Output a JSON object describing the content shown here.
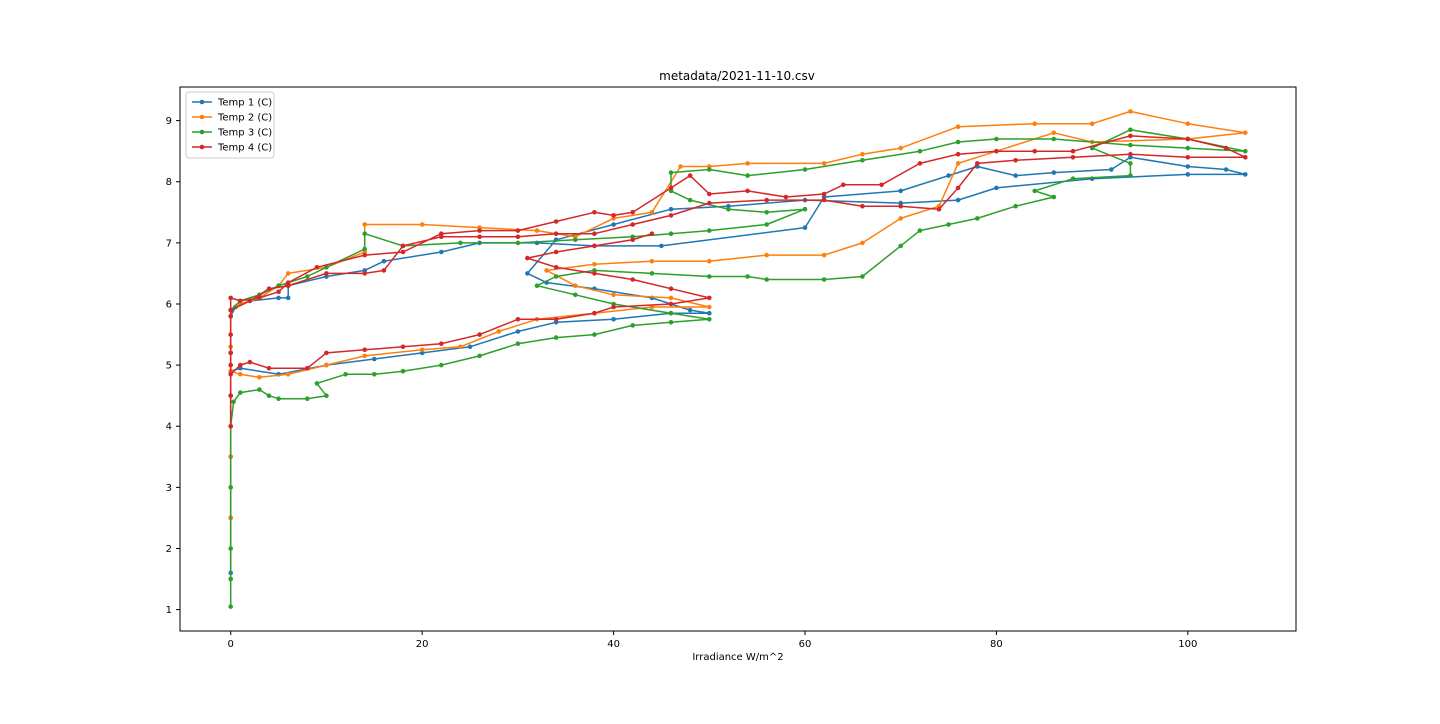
{
  "chart_data": {
    "type": "line",
    "title": "metadata/2021-11-10.csv",
    "xlabel": "Irradiance W/m^2",
    "ylabel": "",
    "xlim": [
      -5.3,
      111.3
    ],
    "ylim": [
      0.65,
      9.55
    ],
    "x_ticks": [
      0,
      20,
      40,
      60,
      80,
      100
    ],
    "y_ticks": [
      1,
      2,
      3,
      4,
      5,
      6,
      7,
      8,
      9
    ],
    "grid": false,
    "legend_position": "top-left",
    "markers": true,
    "series": [
      {
        "name": "Temp 1 (C)",
        "color": "#1f77b4",
        "points": [
          [
            0,
            1.6
          ],
          [
            0,
            2.5
          ],
          [
            0,
            3.5
          ],
          [
            0,
            4.5
          ],
          [
            0,
            5.2
          ],
          [
            0,
            5.8
          ],
          [
            0.5,
            5.95
          ],
          [
            2,
            6.05
          ],
          [
            5,
            6.1
          ],
          [
            6,
            6.1
          ],
          [
            6,
            6.3
          ],
          [
            10,
            6.45
          ],
          [
            14,
            6.55
          ],
          [
            16,
            6.7
          ],
          [
            22,
            6.85
          ],
          [
            26,
            7.0
          ],
          [
            32,
            7.0
          ],
          [
            38,
            6.95
          ],
          [
            45,
            6.95
          ],
          [
            60,
            7.25
          ],
          [
            62,
            7.75
          ],
          [
            70,
            7.85
          ],
          [
            75,
            8.1
          ],
          [
            78,
            8.25
          ],
          [
            82,
            8.1
          ],
          [
            86,
            8.15
          ],
          [
            92,
            8.2
          ],
          [
            94,
            8.4
          ],
          [
            100,
            8.25
          ],
          [
            104,
            8.2
          ],
          [
            106,
            8.12
          ],
          [
            100,
            8.12
          ],
          [
            90,
            8.05
          ],
          [
            80,
            7.9
          ],
          [
            76,
            7.7
          ],
          [
            70,
            7.65
          ],
          [
            60,
            7.7
          ],
          [
            52,
            7.6
          ],
          [
            46,
            7.55
          ],
          [
            40,
            7.3
          ],
          [
            34,
            7.05
          ],
          [
            31,
            6.5
          ],
          [
            33,
            6.35
          ],
          [
            38,
            6.25
          ],
          [
            44,
            6.1
          ],
          [
            48,
            5.9
          ],
          [
            50,
            5.85
          ],
          [
            46,
            5.85
          ],
          [
            40,
            5.75
          ],
          [
            34,
            5.7
          ],
          [
            30,
            5.55
          ],
          [
            25,
            5.3
          ],
          [
            20,
            5.2
          ],
          [
            15,
            5.1
          ],
          [
            10,
            5.0
          ],
          [
            5,
            4.85
          ],
          [
            1,
            4.95
          ],
          [
            0,
            4.9
          ]
        ]
      },
      {
        "name": "Temp 2 (C)",
        "color": "#ff7f0e",
        "points": [
          [
            0,
            1.5
          ],
          [
            0,
            2.5
          ],
          [
            0,
            3.5
          ],
          [
            0,
            4.5
          ],
          [
            0,
            5.3
          ],
          [
            0,
            5.9
          ],
          [
            1,
            6.0
          ],
          [
            3,
            6.1
          ],
          [
            5,
            6.3
          ],
          [
            6,
            6.5
          ],
          [
            10,
            6.6
          ],
          [
            14,
            6.85
          ],
          [
            14,
            7.3
          ],
          [
            20,
            7.3
          ],
          [
            26,
            7.25
          ],
          [
            32,
            7.2
          ],
          [
            36,
            7.1
          ],
          [
            40,
            7.4
          ],
          [
            44,
            7.5
          ],
          [
            47,
            8.25
          ],
          [
            50,
            8.25
          ],
          [
            54,
            8.3
          ],
          [
            62,
            8.3
          ],
          [
            66,
            8.45
          ],
          [
            70,
            8.55
          ],
          [
            76,
            8.9
          ],
          [
            84,
            8.95
          ],
          [
            90,
            8.95
          ],
          [
            94,
            9.15
          ],
          [
            100,
            8.95
          ],
          [
            106,
            8.8
          ],
          [
            100,
            8.7
          ],
          [
            90,
            8.65
          ],
          [
            86,
            8.8
          ],
          [
            80,
            8.5
          ],
          [
            76,
            8.3
          ],
          [
            74,
            7.6
          ],
          [
            70,
            7.4
          ],
          [
            66,
            7.0
          ],
          [
            62,
            6.8
          ],
          [
            56,
            6.8
          ],
          [
            50,
            6.7
          ],
          [
            44,
            6.7
          ],
          [
            38,
            6.65
          ],
          [
            33,
            6.55
          ],
          [
            36,
            6.3
          ],
          [
            40,
            6.15
          ],
          [
            46,
            6.1
          ],
          [
            50,
            5.95
          ],
          [
            44,
            5.95
          ],
          [
            38,
            5.85
          ],
          [
            32,
            5.75
          ],
          [
            28,
            5.55
          ],
          [
            24,
            5.3
          ],
          [
            20,
            5.25
          ],
          [
            14,
            5.15
          ],
          [
            10,
            5.0
          ],
          [
            6,
            4.85
          ],
          [
            3,
            4.8
          ],
          [
            1,
            4.85
          ],
          [
            0,
            4.9
          ]
        ]
      },
      {
        "name": "Temp 3 (C)",
        "color": "#2ca02c",
        "points": [
          [
            0,
            1.05
          ],
          [
            0,
            1.5
          ],
          [
            0,
            2.0
          ],
          [
            0,
            3.0
          ],
          [
            0,
            4.0
          ],
          [
            0.3,
            4.4
          ],
          [
            1,
            4.55
          ],
          [
            3,
            4.6
          ],
          [
            4,
            4.5
          ],
          [
            5,
            4.45
          ],
          [
            8,
            4.45
          ],
          [
            10,
            4.5
          ],
          [
            9,
            4.7
          ],
          [
            12,
            4.85
          ],
          [
            15,
            4.85
          ],
          [
            18,
            4.9
          ],
          [
            22,
            5.0
          ],
          [
            26,
            5.15
          ],
          [
            30,
            5.35
          ],
          [
            34,
            5.45
          ],
          [
            38,
            5.5
          ],
          [
            42,
            5.65
          ],
          [
            46,
            5.7
          ],
          [
            50,
            5.75
          ],
          [
            46,
            5.85
          ],
          [
            40,
            6.0
          ],
          [
            36,
            6.15
          ],
          [
            32,
            6.3
          ],
          [
            34,
            6.45
          ],
          [
            38,
            6.55
          ],
          [
            44,
            6.5
          ],
          [
            50,
            6.45
          ],
          [
            54,
            6.45
          ],
          [
            56,
            6.4
          ],
          [
            62,
            6.4
          ],
          [
            66,
            6.45
          ],
          [
            70,
            6.95
          ],
          [
            72,
            7.2
          ],
          [
            75,
            7.3
          ],
          [
            78,
            7.4
          ],
          [
            82,
            7.6
          ],
          [
            86,
            7.75
          ],
          [
            84,
            7.85
          ],
          [
            88,
            8.05
          ],
          [
            94,
            8.1
          ],
          [
            94,
            8.3
          ],
          [
            90,
            8.55
          ],
          [
            94,
            8.85
          ],
          [
            100,
            8.7
          ],
          [
            106,
            8.5
          ],
          [
            100,
            8.55
          ],
          [
            94,
            8.6
          ],
          [
            86,
            8.7
          ],
          [
            80,
            8.7
          ],
          [
            76,
            8.65
          ],
          [
            72,
            8.5
          ],
          [
            66,
            8.35
          ],
          [
            60,
            8.2
          ],
          [
            54,
            8.1
          ],
          [
            50,
            8.2
          ],
          [
            46,
            8.15
          ],
          [
            46,
            7.85
          ],
          [
            48,
            7.7
          ],
          [
            52,
            7.55
          ],
          [
            56,
            7.5
          ],
          [
            60,
            7.55
          ],
          [
            56,
            7.3
          ],
          [
            50,
            7.2
          ],
          [
            46,
            7.15
          ],
          [
            42,
            7.1
          ],
          [
            36,
            7.05
          ],
          [
            30,
            7.0
          ],
          [
            24,
            7.0
          ],
          [
            18,
            6.95
          ],
          [
            14,
            7.15
          ],
          [
            14,
            6.9
          ],
          [
            10,
            6.6
          ],
          [
            8,
            6.45
          ],
          [
            5,
            6.3
          ],
          [
            3,
            6.15
          ],
          [
            1,
            6.05
          ],
          [
            0,
            5.9
          ]
        ]
      },
      {
        "name": "Temp 4 (C)",
        "color": "#d62728",
        "points": [
          [
            0,
            4.0
          ],
          [
            0,
            4.5
          ],
          [
            0,
            5.0
          ],
          [
            0,
            5.5
          ],
          [
            0,
            5.8
          ],
          [
            0,
            6.1
          ],
          [
            1,
            6.05
          ],
          [
            3,
            6.1
          ],
          [
            5,
            6.2
          ],
          [
            6,
            6.35
          ],
          [
            9,
            6.6
          ],
          [
            14,
            6.8
          ],
          [
            18,
            6.85
          ],
          [
            22,
            7.15
          ],
          [
            26,
            7.2
          ],
          [
            30,
            7.2
          ],
          [
            34,
            7.35
          ],
          [
            38,
            7.5
          ],
          [
            40,
            7.45
          ],
          [
            42,
            7.5
          ],
          [
            46,
            7.9
          ],
          [
            48,
            8.1
          ],
          [
            50,
            7.8
          ],
          [
            54,
            7.85
          ],
          [
            58,
            7.75
          ],
          [
            62,
            7.8
          ],
          [
            64,
            7.95
          ],
          [
            68,
            7.95
          ],
          [
            72,
            8.3
          ],
          [
            76,
            8.45
          ],
          [
            80,
            8.5
          ],
          [
            84,
            8.5
          ],
          [
            88,
            8.5
          ],
          [
            94,
            8.75
          ],
          [
            100,
            8.7
          ],
          [
            104,
            8.55
          ],
          [
            106,
            8.4
          ],
          [
            100,
            8.4
          ],
          [
            94,
            8.45
          ],
          [
            88,
            8.4
          ],
          [
            82,
            8.35
          ],
          [
            78,
            8.3
          ],
          [
            76,
            7.9
          ],
          [
            74,
            7.55
          ],
          [
            70,
            7.6
          ],
          [
            66,
            7.6
          ],
          [
            62,
            7.7
          ],
          [
            56,
            7.7
          ],
          [
            50,
            7.65
          ],
          [
            46,
            7.45
          ],
          [
            42,
            7.3
          ],
          [
            38,
            7.15
          ],
          [
            34,
            7.15
          ],
          [
            30,
            7.1
          ],
          [
            26,
            7.1
          ],
          [
            22,
            7.1
          ],
          [
            18,
            6.95
          ],
          [
            16,
            6.55
          ],
          [
            14,
            6.5
          ],
          [
            10,
            6.5
          ],
          [
            6,
            6.3
          ],
          [
            4,
            6.25
          ],
          [
            2,
            6.05
          ],
          [
            0,
            5.9
          ],
          [
            0,
            5.2
          ],
          [
            0,
            4.85
          ],
          [
            1,
            5.0
          ],
          [
            2,
            5.05
          ],
          [
            4,
            4.95
          ],
          [
            8,
            4.95
          ],
          [
            10,
            5.2
          ],
          [
            14,
            5.25
          ],
          [
            18,
            5.3
          ],
          [
            22,
            5.35
          ],
          [
            26,
            5.5
          ],
          [
            30,
            5.75
          ],
          [
            34,
            5.75
          ],
          [
            38,
            5.85
          ],
          [
            40,
            5.95
          ],
          [
            46,
            6.0
          ],
          [
            50,
            6.1
          ],
          [
            46,
            6.25
          ],
          [
            42,
            6.4
          ],
          [
            38,
            6.5
          ],
          [
            34,
            6.6
          ],
          [
            31,
            6.75
          ],
          [
            34,
            6.85
          ],
          [
            38,
            6.95
          ],
          [
            42,
            7.05
          ],
          [
            44,
            7.15
          ]
        ]
      }
    ]
  }
}
